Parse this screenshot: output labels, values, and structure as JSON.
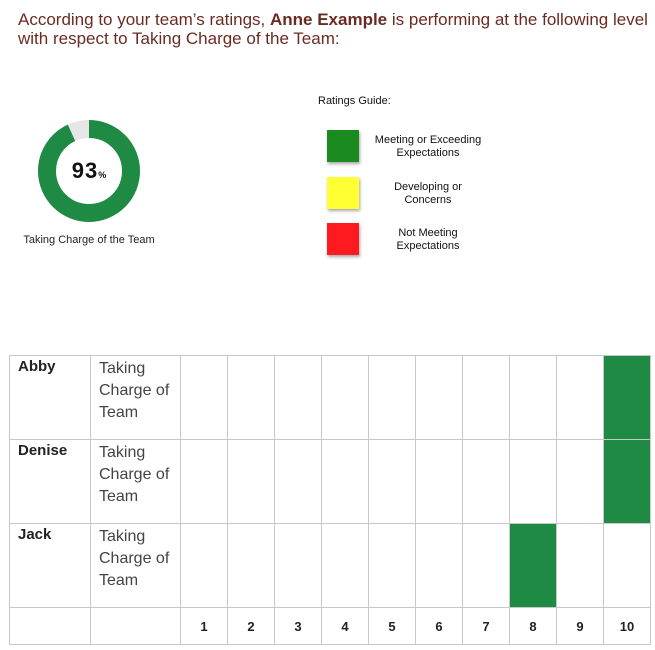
{
  "intro": {
    "prefix": "According to your team’s ratings, ",
    "name": "Anne Example",
    "suffix": " is performing at the following level with respect to Taking Charge of the Team:"
  },
  "summary": {
    "percent_value": 93,
    "percent_number": "93",
    "percent_sign": "%",
    "caption": "Taking Charge of the Team",
    "ring_color": "#1f8a43",
    "ring_track_color": "#e6e6e6"
  },
  "ratings_guide": {
    "title": "Ratings Guide:",
    "items": [
      {
        "label": "Meeting or Exceeding Expectations",
        "color": "#1b8a1f"
      },
      {
        "label": "Developing or Concerns",
        "color": "#ffff33"
      },
      {
        "label": "Not Meeting Expectations",
        "color": "#ff1a1f"
      }
    ]
  },
  "table": {
    "fill_color": "#1f8a43",
    "scale": [
      "1",
      "2",
      "3",
      "4",
      "5",
      "6",
      "7",
      "8",
      "9",
      "10"
    ],
    "rows": [
      {
        "name": "Abby",
        "competency": "Taking Charge of Team",
        "score": 10
      },
      {
        "name": "Denise",
        "competency": "Taking Charge of Team",
        "score": 10
      },
      {
        "name": "Jack",
        "competency": "Taking Charge of Team",
        "score": 8
      }
    ]
  }
}
